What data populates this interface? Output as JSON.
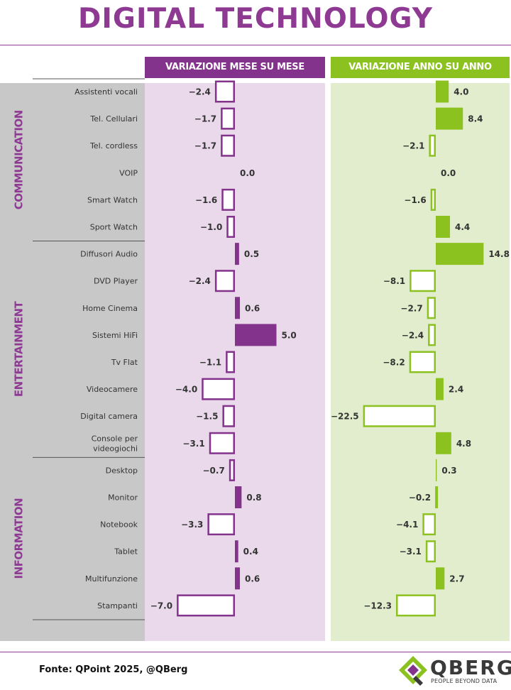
{
  "title": "DIGITAL TECHNOLOGY",
  "headers": {
    "mom": "VARIAZIONE MESE SU MESE",
    "yoy": "VARIAZIONE ANNO SU ANNO"
  },
  "footer": {
    "source": "Fonte: QPoint 2025, @QBerg",
    "logo_word": "QBERG",
    "logo_tagline": "PEOPLE BEYOND DATA"
  },
  "colors": {
    "purple": "#83338b",
    "green": "#8cc21f",
    "purple_bg": "#ead9ea",
    "green_bg": "#e1edcc",
    "gray_band": "#c8c8c8",
    "label_color": "#8e3a93"
  },
  "chart_data": {
    "type": "bar",
    "orientation": "horizontal",
    "title": "DIGITAL TECHNOLOGY",
    "categories": [
      "Assistenti vocali",
      "Tel. Cellulari",
      "Tel. cordless",
      "VOIP",
      "Smart Watch",
      "Sport Watch",
      "Diffusori Audio",
      "DVD Player",
      "Home Cinema",
      "Sistemi HiFi",
      "Tv Flat",
      "Videocamere",
      "Digital camera",
      "Console per videogiochi",
      "Desktop",
      "Monitor",
      "Notebook",
      "Tablet",
      "Multifunzione",
      "Stampanti"
    ],
    "groups": [
      {
        "name": "COMMUNICATION",
        "start": 0,
        "end": 5
      },
      {
        "name": "ENTERTAINMENT",
        "start": 6,
        "end": 13
      },
      {
        "name": "INFORMATION",
        "start": 14,
        "end": 19
      }
    ],
    "series": [
      {
        "name": "VARIAZIONE MESE SU MESE",
        "values": [
          -2.4,
          -1.7,
          -1.7,
          0.0,
          -1.6,
          -1.0,
          0.5,
          -2.4,
          0.6,
          5.0,
          -1.1,
          -4.0,
          -1.5,
          -3.1,
          -0.7,
          0.8,
          -3.3,
          0.4,
          0.6,
          -7.0
        ],
        "labels": [
          "−2.4",
          "−1.7",
          "−1.7",
          "0.0",
          "−1.6",
          "−1.0",
          "0.5",
          "−2.4",
          "0.6",
          "5.0",
          "−1.1",
          "−4.0",
          "−1.5",
          "−3.1",
          "−0.7",
          "0.8",
          "−3.3",
          "0.4",
          "0.6",
          "−7.0"
        ]
      },
      {
        "name": "VARIAZIONE ANNO SU ANNO",
        "values": [
          4.0,
          8.4,
          -2.1,
          0.0,
          -1.6,
          4.4,
          14.8,
          -8.1,
          -2.7,
          -2.4,
          -8.2,
          2.4,
          -22.5,
          4.8,
          0.3,
          -0.2,
          -4.1,
          -3.1,
          2.7,
          -12.3
        ],
        "labels": [
          "4.0",
          "8.4",
          "−2.1",
          "0.0",
          "−1.6",
          "4.4",
          "14.8",
          "−8.1",
          "−2.7",
          "−2.4",
          "−8.2",
          "2.4",
          "−22.5",
          "4.8",
          "0.3",
          "−0.2",
          "−4.1",
          "−3.1",
          "2.7",
          "−12.3"
        ]
      }
    ]
  }
}
